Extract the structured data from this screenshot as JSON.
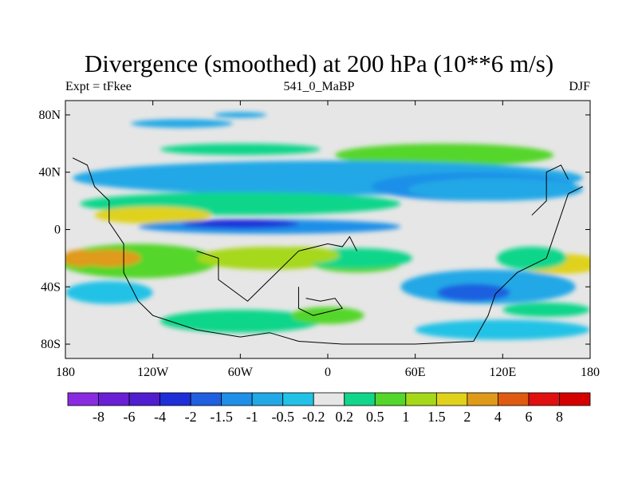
{
  "chart_data": {
    "type": "heatmap",
    "title": "Divergence (smoothed) at 200 hPa (10**6 m/s)",
    "left_label": "Expt = tFkee",
    "center_label": "541_0_MaBP",
    "right_label": "DJF",
    "x_ticks": [
      "180",
      "120W",
      "60W",
      "0",
      "60E",
      "120E",
      "180"
    ],
    "y_ticks": [
      "80N",
      "40N",
      "0",
      "40S",
      "80S"
    ],
    "xlim": [
      -180,
      180
    ],
    "ylim": [
      -90,
      90
    ],
    "levels": [
      "-8",
      "-6",
      "-4",
      "-2",
      "-1.5",
      "-1",
      "-0.5",
      "-0.2",
      "0.2",
      "0.5",
      "1",
      "1.5",
      "2",
      "4",
      "6",
      "8"
    ],
    "colors": [
      "#8a2be2",
      "#6a1fd6",
      "#4f1fcf",
      "#1f2fd8",
      "#1f5fe0",
      "#1f8fe8",
      "#22a8e6",
      "#22c2e6",
      "#e6e6e6",
      "#11d68a",
      "#55d62a",
      "#a6d81a",
      "#e0d21a",
      "#e09a1a",
      "#e05a12",
      "#e01010",
      "#d40000"
    ],
    "features": [
      {
        "lon": 20,
        "lat": -20,
        "rlon": 38,
        "rlat": 7,
        "level": 1
      },
      {
        "lon": -20,
        "lat": -18,
        "rlon": 28,
        "rlat": 6,
        "level": 3
      },
      {
        "lon": 140,
        "lat": -20,
        "rlon": 24,
        "rlat": 8,
        "level": 1
      },
      {
        "lon": 115,
        "lat": 28,
        "rlon": 60,
        "rlat": 8,
        "level": -2
      }
    ]
  }
}
